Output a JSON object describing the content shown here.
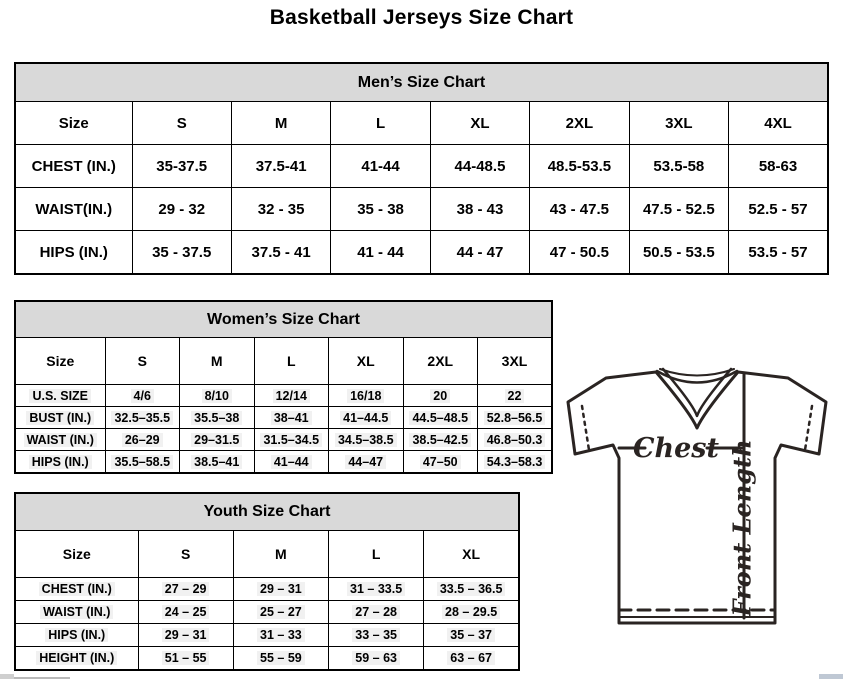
{
  "page": {
    "title": "Basketball Jerseys Size Chart"
  },
  "tables": {
    "men": {
      "title": "Men’s Size Chart",
      "highlight": false,
      "columns": [
        "Size",
        "S",
        "M",
        "L",
        "XL",
        "2XL",
        "3XL",
        "4XL"
      ],
      "rows": [
        {
          "label": "CHEST (IN.)",
          "values": [
            "35-37.5",
            "37.5-41",
            "41-44",
            "44-48.5",
            "48.5-53.5",
            "53.5-58",
            "58-63"
          ]
        },
        {
          "label": "WAIST(IN.)",
          "values": [
            "29 - 32",
            "32 - 35",
            "35 - 38",
            "38 - 43",
            "43 - 47.5",
            "47.5 - 52.5",
            "52.5 - 57"
          ]
        },
        {
          "label": "HIPS (IN.)",
          "values": [
            "35 - 37.5",
            "37.5 - 41",
            "41 - 44",
            "44 - 47",
            "47 - 50.5",
            "50.5 - 53.5",
            "53.5 - 57"
          ]
        }
      ]
    },
    "women": {
      "title": "Women’s Size Chart",
      "highlight": true,
      "columns": [
        "Size",
        "S",
        "M",
        "L",
        "XL",
        "2XL",
        "3XL"
      ],
      "rows": [
        {
          "label": "U.S. SIZE",
          "values": [
            "4/6",
            "8/10",
            "12/14",
            "16/18",
            "20",
            "22"
          ]
        },
        {
          "label": "BUST (IN.)",
          "values": [
            "32.5–35.5",
            "35.5–38",
            "38–41",
            "41–44.5",
            "44.5–48.5",
            "52.8–56.5"
          ]
        },
        {
          "label": "WAIST (IN.)",
          "values": [
            "26–29",
            "29–31.5",
            "31.5–34.5",
            "34.5–38.5",
            "38.5–42.5",
            "46.8–50.3"
          ]
        },
        {
          "label": "HIPS (IN.)",
          "values": [
            "35.5–58.5",
            "38.5–41",
            "41–44",
            "44–47",
            "47–50",
            "54.3–58.3"
          ]
        }
      ]
    },
    "youth": {
      "title": "Youth Size Chart",
      "highlight": true,
      "columns": [
        "Size",
        "S",
        "M",
        "L",
        "XL"
      ],
      "rows": [
        {
          "label": "CHEST (IN.)",
          "values": [
            "27 – 29",
            "29 – 31",
            "31 – 33.5",
            "33.5 – 36.5"
          ]
        },
        {
          "label": "WAIST (IN.)",
          "values": [
            "24 – 25",
            "25 – 27",
            "27 – 28",
            "28 – 29.5"
          ]
        },
        {
          "label": "HIPS (IN.)",
          "values": [
            "29 – 31",
            "31 – 33",
            "33 – 35",
            "35 – 37"
          ]
        },
        {
          "label": "HEIGHT (IN.)",
          "values": [
            "51 – 55",
            "55 – 59",
            "59 – 63",
            "63 – 67"
          ]
        }
      ]
    }
  },
  "diagram": {
    "chest_label": "Chest",
    "front_length_label": "Front Length"
  },
  "colors": {
    "table_header_bg": "#d9d9d9",
    "table_border": "#000000",
    "jersey_stroke": "#2a2422",
    "value_highlight": "#f1f1f1"
  }
}
